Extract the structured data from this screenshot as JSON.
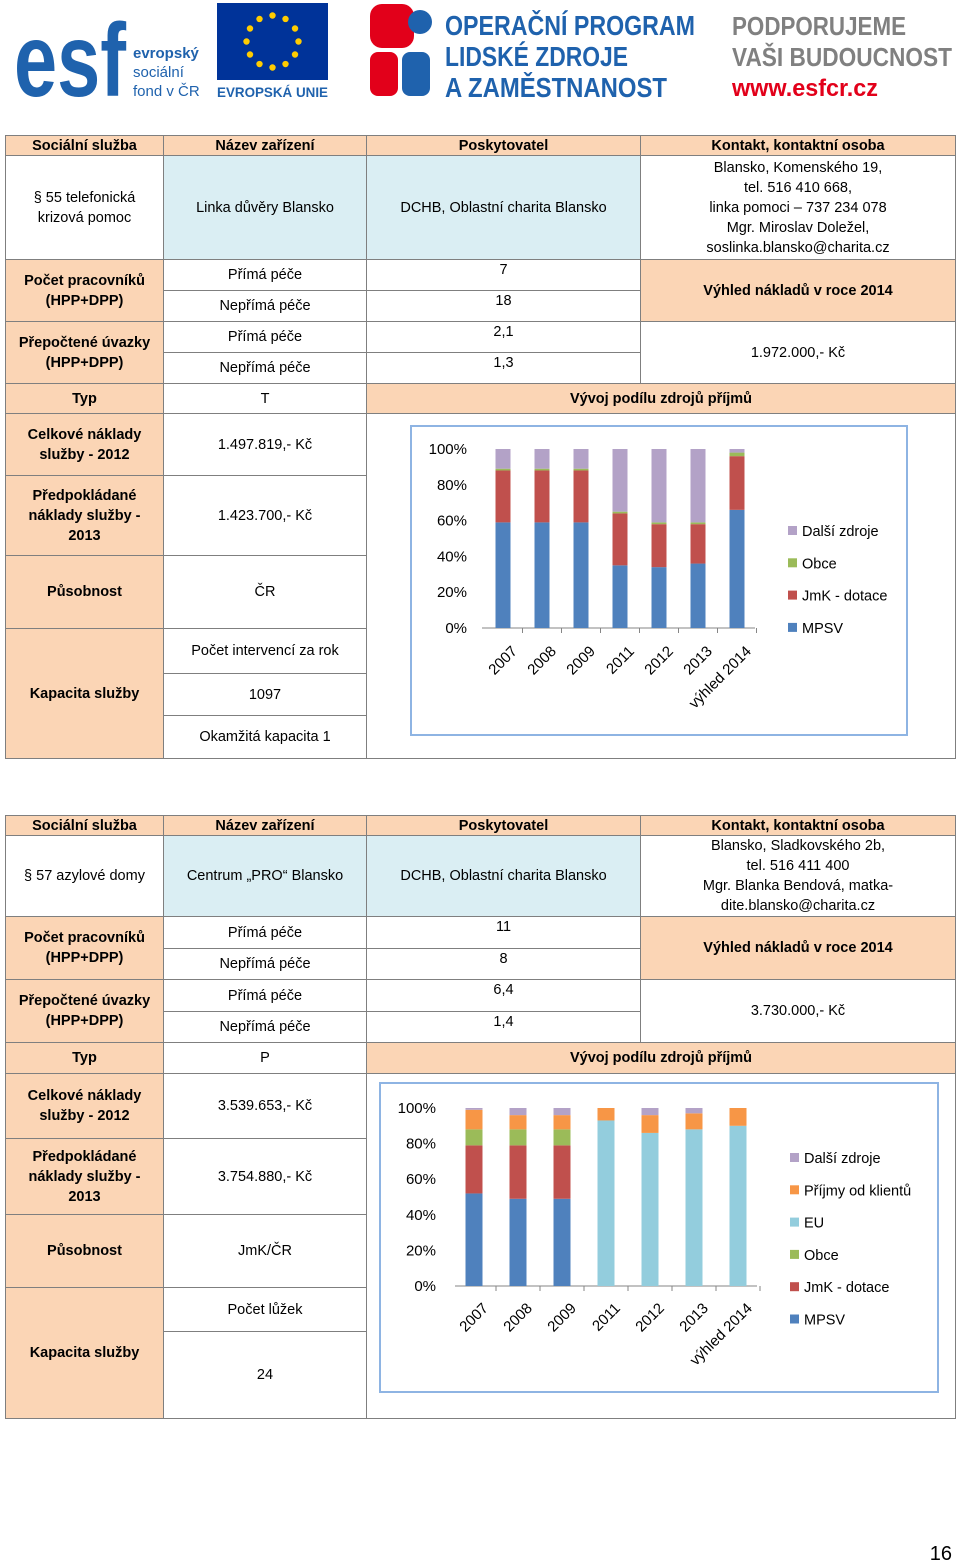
{
  "header": {
    "esf": "esf",
    "esf_lines": [
      "evropský",
      "sociální",
      "fond v ČR"
    ],
    "eu": "EVROPSKÁ UNIE",
    "program": [
      "OPERAČNÍ PROGRAM",
      "LIDSKÉ ZDROJE",
      "A ZAMĚSTNANOST"
    ],
    "slogan": [
      "PODPORUJEME",
      "VAŠI BUDOUCNOST"
    ],
    "url": "www.esfcr.cz"
  },
  "services": [
    {
      "columns": [
        "Sociální služba",
        "Název zařízení",
        "Poskytovatel",
        "Kontakt, kontaktní osoba"
      ],
      "service": "§ 55 telefonická krizová pomoc",
      "facility": "Linka důvěry Blansko",
      "provider": "DCHB, Oblastní charita Blansko",
      "contact": [
        "Blansko, Komenského 19,",
        "tel. 516 410 668,",
        "linka pomoci – 737 234 078",
        "Mgr. Miroslav Doležel,",
        "soslinka.blansko@charita.cz"
      ],
      "staff": {
        "label": "Počet pracovníků (HPP+DPP)",
        "rows": [
          {
            "label": "Přímá péče",
            "value": "7"
          },
          {
            "label": "Nepřímá péče",
            "value": "18"
          }
        ]
      },
      "fte": {
        "label": "Přepočtené úvazky (HPP+DPP)",
        "rows": [
          {
            "label": "Přímá péče",
            "value": "2,1"
          },
          {
            "label": "Nepřímá péče",
            "value": "1,3"
          }
        ]
      },
      "forecast_label": "Výhled nákladů v roce 2014",
      "forecast": "1.972.000,- Kč",
      "type_label": "Typ",
      "type": "T",
      "cost_label": "Celkové náklady služby - 2012",
      "cost": "1.497.819,- Kč",
      "planned_label": "Předpokládané náklady služby - 2013",
      "planned": "1.423.700,- Kč",
      "scope_label": "Působnost",
      "scope": "ČR",
      "capacity_label": "Kapacita služby",
      "capacity": [
        "Počet intervencí za rok",
        "1097",
        "Okamžitá kapacita 1"
      ],
      "chart_data": {
        "type": "bar",
        "stacked": true,
        "title": "Vývoj podílu zdrojů příjmů",
        "categories": [
          "2007",
          "2008",
          "2009",
          "2011",
          "2012",
          "2013",
          "výhled 2014"
        ],
        "series": [
          {
            "name": "MPSV",
            "color": "#4f81bd",
            "values": [
              59,
              59,
              59,
              35,
              34,
              36,
              66
            ]
          },
          {
            "name": "JmK - dotace",
            "color": "#c0504d",
            "values": [
              29,
              29,
              29,
              29,
              24,
              22,
              30
            ]
          },
          {
            "name": "Obce",
            "color": "#9bbb59",
            "values": [
              1,
              1,
              1,
              1,
              1,
              1,
              2
            ]
          },
          {
            "name": "Další zdroje",
            "color": "#b3a2c7",
            "values": [
              11,
              11,
              11,
              35,
              41,
              41,
              2
            ]
          }
        ],
        "ylim": [
          0,
          100
        ],
        "yticks": [
          {
            "value": 0,
            "label": "0%"
          },
          {
            "value": 20,
            "label": "20%"
          },
          {
            "value": 40,
            "label": "40%"
          },
          {
            "value": 60,
            "label": "60%"
          },
          {
            "value": 80,
            "label": "80%"
          },
          {
            "value": 100,
            "label": "100%"
          }
        ],
        "legend": "right"
      }
    },
    {
      "columns": [
        "Sociální služba",
        "Název zařízení",
        "Poskytovatel",
        "Kontakt, kontaktní osoba"
      ],
      "service": "§ 57 azylové domy",
      "facility": "Centrum „PRO“ Blansko",
      "provider": "DCHB, Oblastní charita Blansko",
      "contact": [
        "Blansko, Sladkovského 2b,",
        "tel. 516 411 400",
        "Mgr. Blanka Bendová, matka-",
        "dite.blansko@charita.cz"
      ],
      "staff": {
        "label": "Počet pracovníků (HPP+DPP)",
        "rows": [
          {
            "label": "Přímá péče",
            "value": "11"
          },
          {
            "label": "Nepřímá péče",
            "value": "8"
          }
        ]
      },
      "fte": {
        "label": "Přepočtené úvazky (HPP+DPP)",
        "rows": [
          {
            "label": "Přímá péče",
            "value": "6,4"
          },
          {
            "label": "Nepřímá péče",
            "value": "1,4"
          }
        ]
      },
      "forecast_label": "Výhled nákladů v roce 2014",
      "forecast": "3.730.000,- Kč",
      "type_label": "Typ",
      "type": "P",
      "cost_label": "Celkové náklady služby - 2012",
      "cost": "3.539.653,- Kč",
      "planned_label": "Předpokládané náklady služby - 2013",
      "planned": "3.754.880,- Kč",
      "scope_label": "Působnost",
      "scope": "JmK/ČR",
      "capacity_label": "Kapacita služby",
      "capacity": [
        "Počet lůžek",
        "24"
      ],
      "chart_data": {
        "type": "bar",
        "stacked": true,
        "title": "Vývoj podílu zdrojů příjmů",
        "categories": [
          "2007",
          "2008",
          "2009",
          "2011",
          "2012",
          "2013",
          "výhled 2014"
        ],
        "series": [
          {
            "name": "MPSV",
            "color": "#4f81bd",
            "values": [
              52,
              49,
              49,
              0,
              0,
              0,
              0
            ]
          },
          {
            "name": "JmK - dotace",
            "color": "#c0504d",
            "values": [
              27,
              30,
              30,
              0,
              0,
              0,
              0
            ]
          },
          {
            "name": "Obce",
            "color": "#9bbb59",
            "values": [
              9,
              9,
              9,
              0,
              0,
              0,
              0
            ]
          },
          {
            "name": "EU",
            "color": "#93cddd",
            "values": [
              0,
              0,
              0,
              93,
              86,
              88,
              90
            ]
          },
          {
            "name": "Příjmy od klientů",
            "color": "#f79646",
            "values": [
              11,
              8,
              8,
              7,
              10,
              9,
              10
            ]
          },
          {
            "name": "Další zdroje",
            "color": "#b3a2c7",
            "values": [
              1,
              4,
              4,
              0,
              4,
              3,
              0
            ]
          }
        ],
        "ylim": [
          0,
          100
        ],
        "yticks": [
          {
            "value": 0,
            "label": "0%"
          },
          {
            "value": 20,
            "label": "20%"
          },
          {
            "value": 40,
            "label": "40%"
          },
          {
            "value": 60,
            "label": "60%"
          },
          {
            "value": 80,
            "label": "80%"
          },
          {
            "value": 100,
            "label": "100%"
          }
        ],
        "legend": "right"
      }
    }
  ],
  "page_number": "16"
}
